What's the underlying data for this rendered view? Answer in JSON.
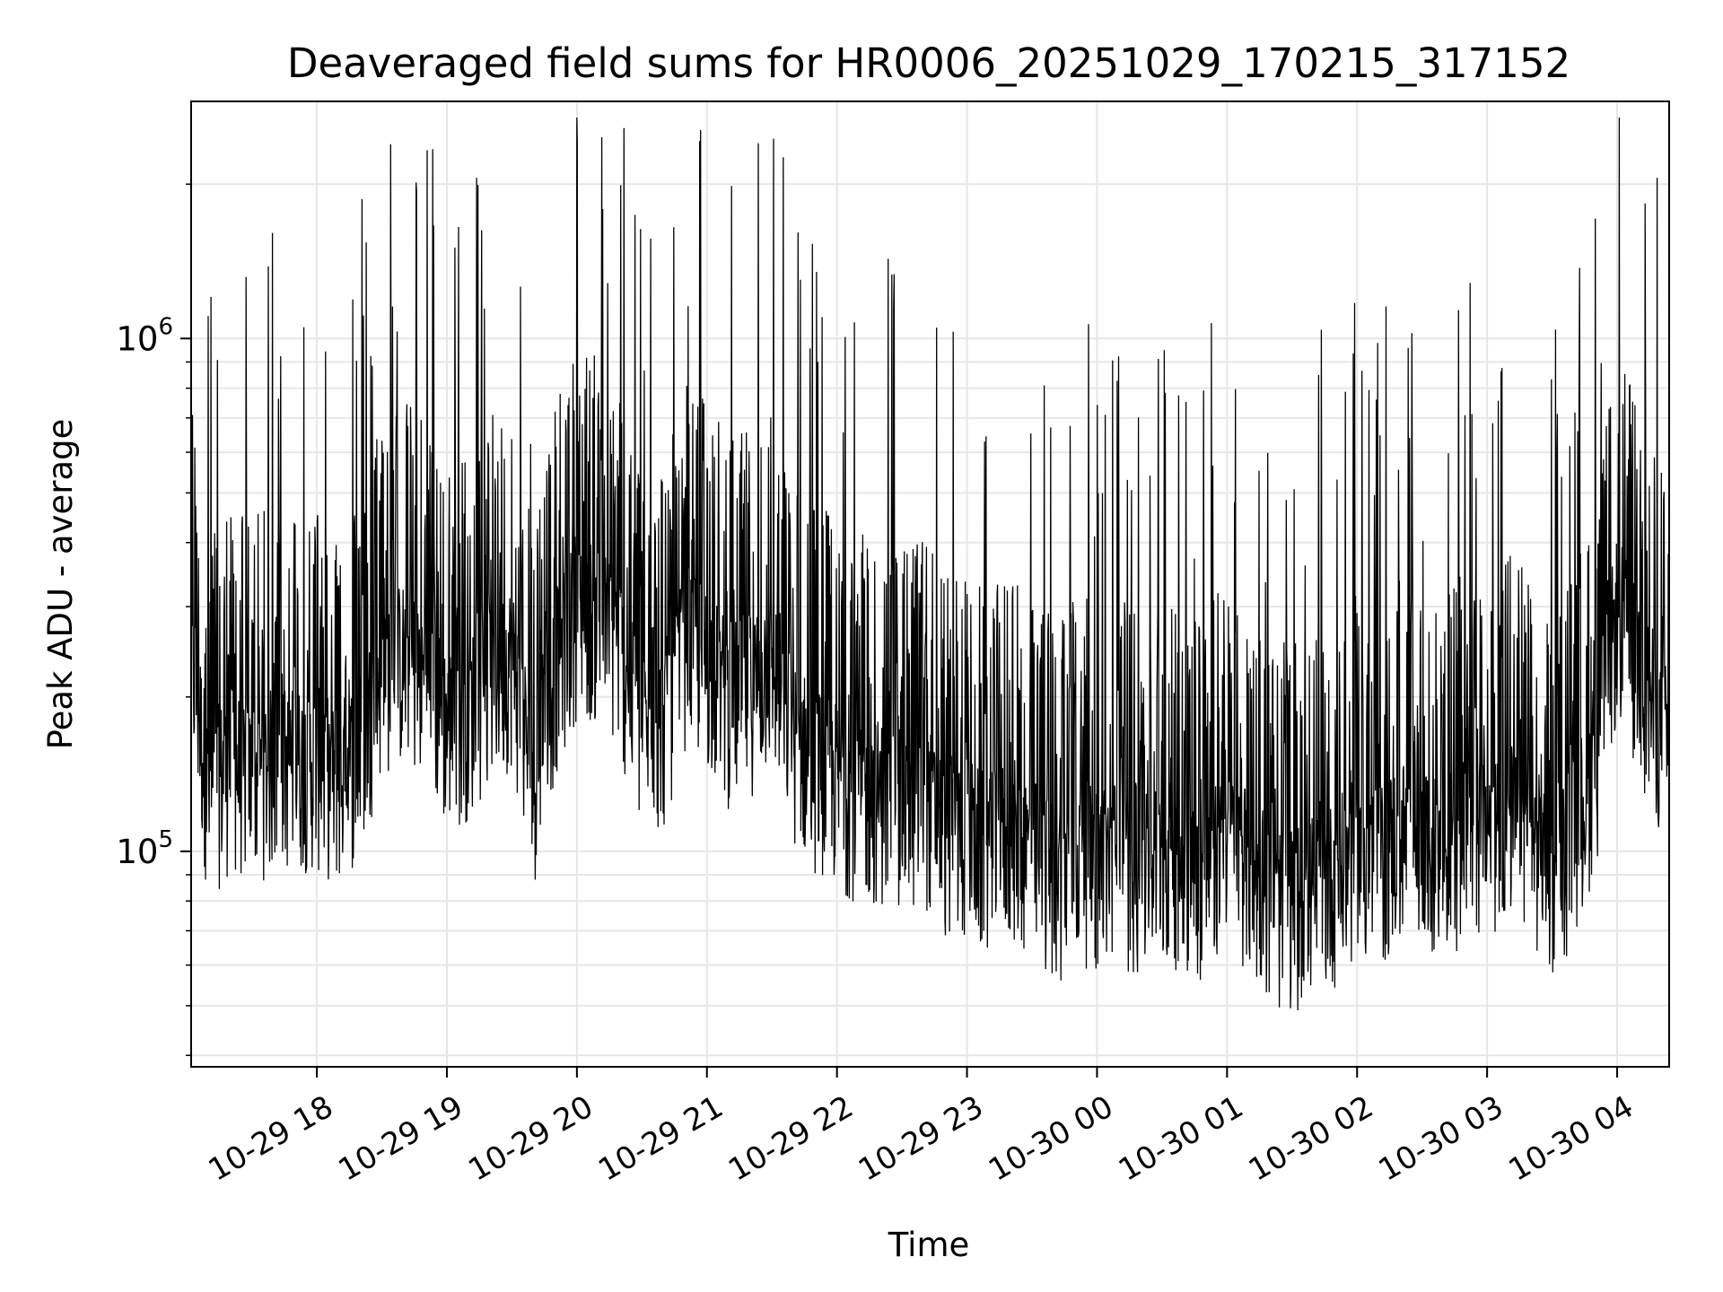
{
  "chart_data": {
    "type": "line",
    "title": "Deaveraged field sums for HR0006_20251029_170215_317152",
    "xlabel": "Time",
    "ylabel": "Peak ADU - average",
    "x_range": [
      "2025-10-29 17:02",
      "2025-10-30 04:24"
    ],
    "y_scale": "log",
    "ylim": [
      38000,
      2900000
    ],
    "x_ticks": [
      {
        "t": "2025-10-29 18:00",
        "label": "10-29 18"
      },
      {
        "t": "2025-10-29 19:00",
        "label": "10-29 19"
      },
      {
        "t": "2025-10-29 20:00",
        "label": "10-29 20"
      },
      {
        "t": "2025-10-29 21:00",
        "label": "10-29 21"
      },
      {
        "t": "2025-10-29 22:00",
        "label": "10-29 22"
      },
      {
        "t": "2025-10-29 23:00",
        "label": "10-29 23"
      },
      {
        "t": "2025-10-30 00:00",
        "label": "10-30 00"
      },
      {
        "t": "2025-10-30 01:00",
        "label": "10-30 01"
      },
      {
        "t": "2025-10-30 02:00",
        "label": "10-30 02"
      },
      {
        "t": "2025-10-30 03:00",
        "label": "10-30 03"
      },
      {
        "t": "2025-10-30 04:00",
        "label": "10-30 04"
      }
    ],
    "y_ticks": [
      {
        "value": 100000,
        "base": "10",
        "exp": "5"
      },
      {
        "value": 1000000,
        "base": "10",
        "exp": "6"
      }
    ],
    "grid": true,
    "line_color": "#000000",
    "series": [
      {
        "x": [
          "2025-10-29 17:02",
          "2025-10-29 17:10",
          "2025-10-29 17:20",
          "2025-10-29 17:30",
          "2025-10-29 17:40",
          "2025-10-29 17:50",
          "2025-10-29 18:00",
          "2025-10-29 18:10",
          "2025-10-29 18:20",
          "2025-10-29 18:30",
          "2025-10-29 18:40",
          "2025-10-29 18:50",
          "2025-10-29 19:00",
          "2025-10-29 19:10",
          "2025-10-29 19:20",
          "2025-10-29 19:30",
          "2025-10-29 19:40",
          "2025-10-29 19:50",
          "2025-10-29 20:00",
          "2025-10-29 20:10",
          "2025-10-29 20:20",
          "2025-10-29 20:30",
          "2025-10-29 20:40",
          "2025-10-29 20:50",
          "2025-10-29 21:00",
          "2025-10-29 21:10",
          "2025-10-29 21:20",
          "2025-10-29 21:30",
          "2025-10-29 21:40",
          "2025-10-29 21:50",
          "2025-10-29 22:00",
          "2025-10-29 22:10",
          "2025-10-29 22:20",
          "2025-10-29 22:30",
          "2025-10-29 22:40",
          "2025-10-29 22:50",
          "2025-10-29 23:00",
          "2025-10-29 23:10",
          "2025-10-29 23:20",
          "2025-10-29 23:30",
          "2025-10-29 23:40",
          "2025-10-29 23:50",
          "2025-10-30 00:00",
          "2025-10-30 00:10",
          "2025-10-30 00:20",
          "2025-10-30 00:30",
          "2025-10-30 00:40",
          "2025-10-30 00:50",
          "2025-10-30 01:00",
          "2025-10-30 01:10",
          "2025-10-30 01:20",
          "2025-10-30 01:30",
          "2025-10-30 01:40",
          "2025-10-30 01:50",
          "2025-10-30 02:00",
          "2025-10-30 02:10",
          "2025-10-30 02:20",
          "2025-10-30 02:30",
          "2025-10-30 02:40",
          "2025-10-30 02:50",
          "2025-10-30 03:00",
          "2025-10-30 03:10",
          "2025-10-30 03:20",
          "2025-10-30 03:30",
          "2025-10-30 03:40",
          "2025-10-30 03:50",
          "2025-10-30 04:00",
          "2025-10-30 04:10",
          "2025-10-30 04:24"
        ],
        "y": [
          250000,
          130000,
          150000,
          140000,
          150000,
          150000,
          150000,
          140000,
          160000,
          230000,
          240000,
          220000,
          180000,
          190000,
          220000,
          240000,
          140000,
          230000,
          300000,
          290000,
          250000,
          170000,
          180000,
          260000,
          240000,
          200000,
          210000,
          240000,
          170000,
          150000,
          140000,
          130000,
          130000,
          120000,
          130000,
          110000,
          110000,
          100000,
          110000,
          100000,
          90000,
          100000,
          95000,
          100000,
          90000,
          100000,
          95000,
          90000,
          110000,
          95000,
          80000,
          80000,
          85000,
          90000,
          100000,
          95000,
          110000,
          100000,
          100000,
          110000,
          110000,
          120000,
          110000,
          90000,
          110000,
          150000,
          300000,
          230000,
          160000
        ]
      }
    ]
  }
}
